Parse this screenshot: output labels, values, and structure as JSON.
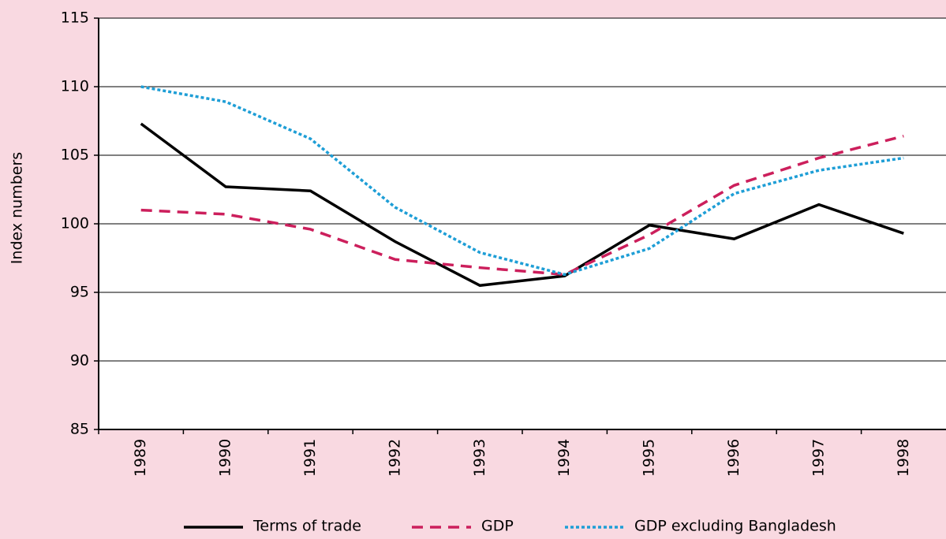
{
  "chart_data": {
    "type": "line",
    "y_label": "Index numbers",
    "categories": [
      "1989",
      "1990",
      "1991",
      "1992",
      "1993",
      "1994",
      "1995",
      "1996",
      "1997",
      "1998"
    ],
    "series": [
      {
        "name": "Terms of trade",
        "color": "#000000",
        "dash": "solid",
        "values": [
          107.3,
          102.7,
          102.4,
          98.7,
          95.5,
          96.2,
          99.9,
          98.9,
          101.4,
          99.3
        ]
      },
      {
        "name": "GDP",
        "color": "#cc1f5c",
        "dash": "dashed",
        "values": [
          101.0,
          100.7,
          99.6,
          97.4,
          96.8,
          96.3,
          99.2,
          102.8,
          104.8,
          106.4
        ]
      },
      {
        "name": "GDP excluding Bangladesh",
        "color": "#1e9ed6",
        "dash": "dotted",
        "values": [
          110.0,
          108.9,
          106.2,
          101.2,
          97.9,
          96.3,
          98.2,
          102.2,
          103.9,
          104.8
        ]
      }
    ],
    "ylim": [
      85,
      115
    ],
    "yticks": [
      85,
      90,
      95,
      100,
      105,
      110,
      115
    ],
    "grid": true
  }
}
